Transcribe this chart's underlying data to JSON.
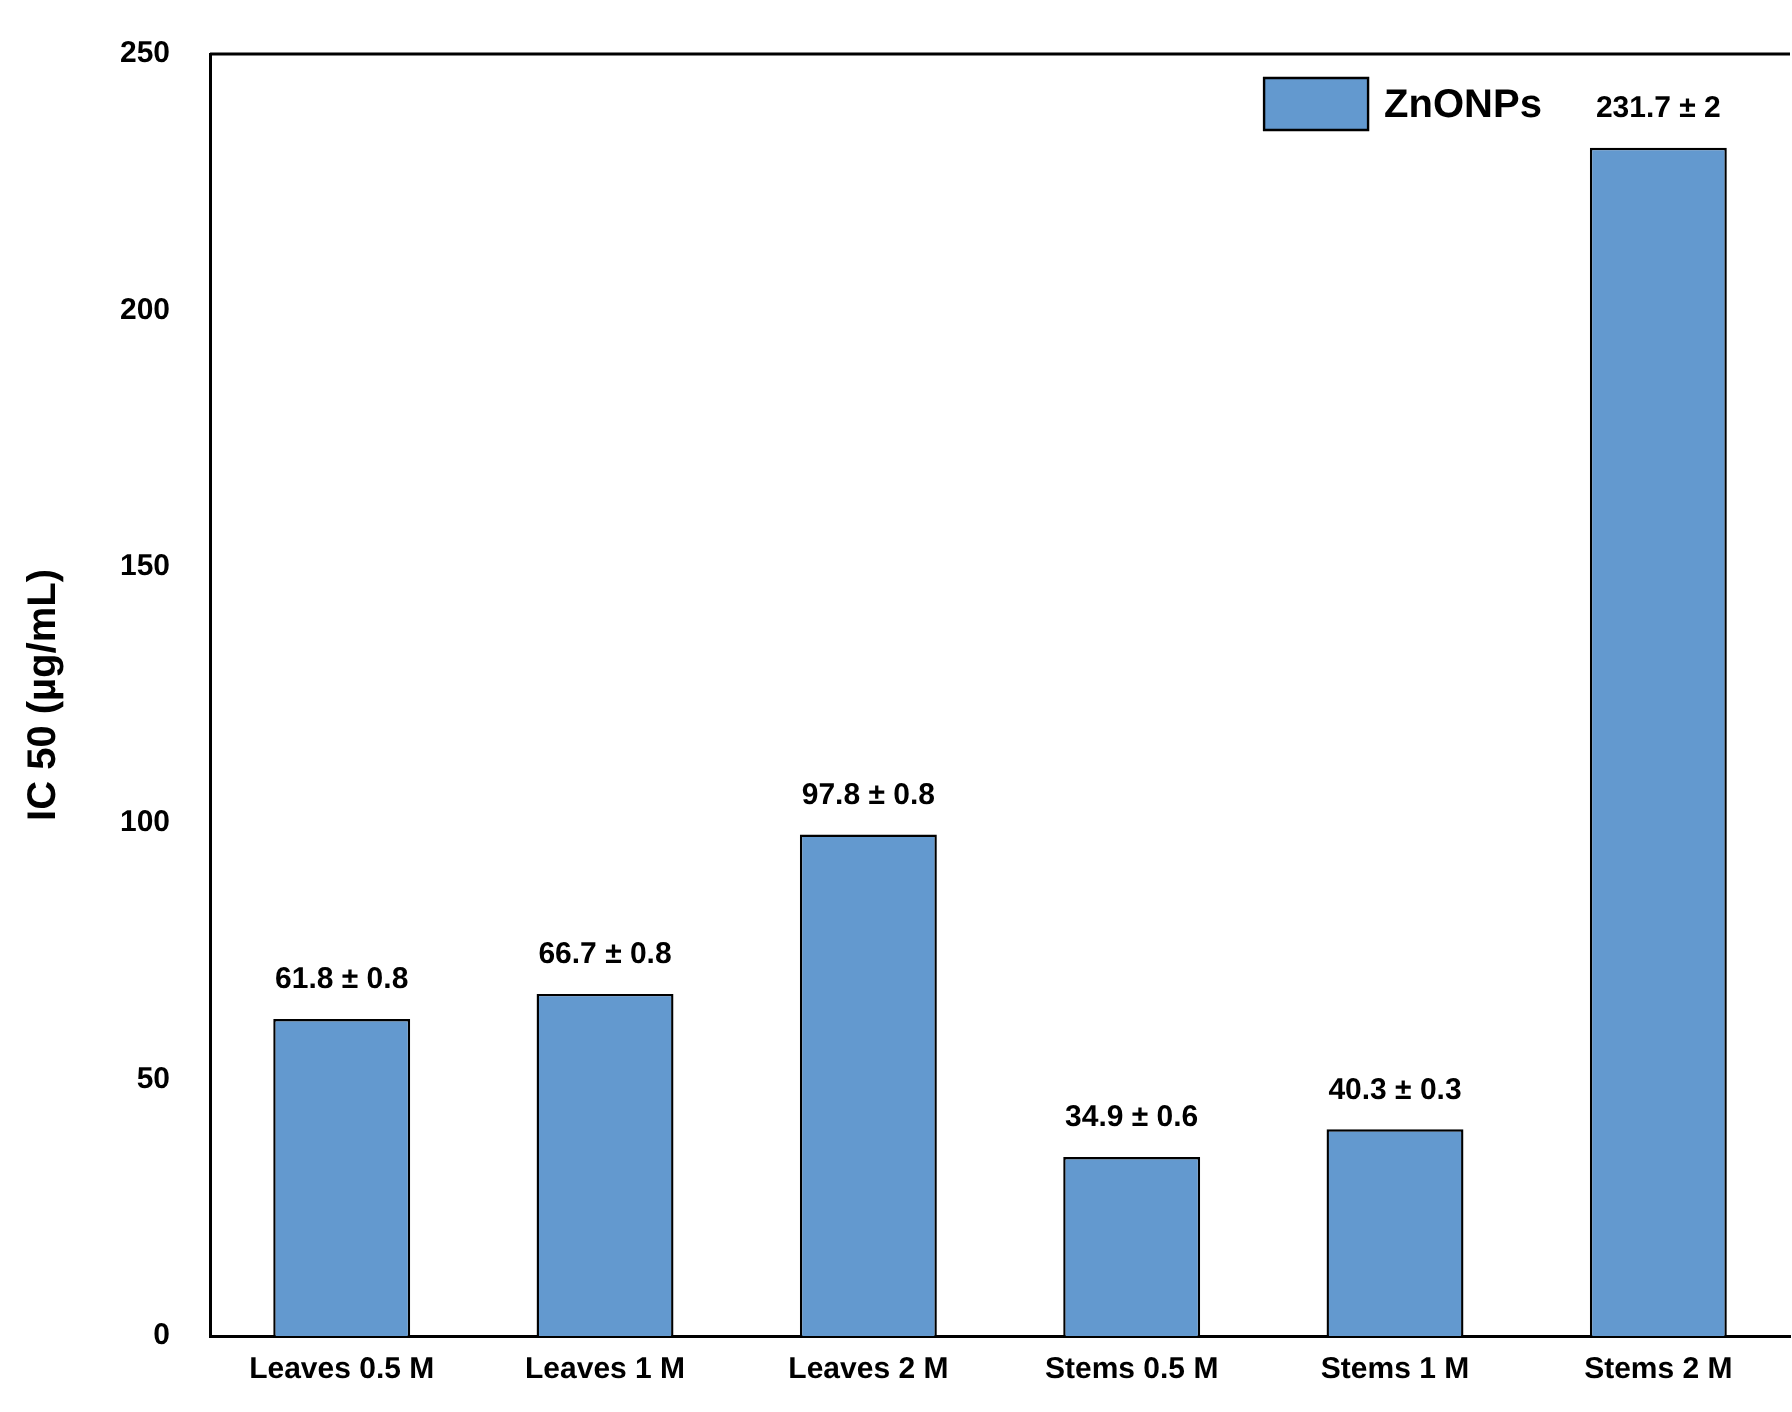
{
  "chart_data": {
    "type": "bar",
    "ylabel": "IC 50 (µg/mL)",
    "categories": [
      "Leaves 0.5 M",
      "Leaves 1 M",
      "Leaves 2 M",
      "Stems 0.5 M",
      "Stems 1 M",
      "Stems 2 M"
    ],
    "series": [
      {
        "name": "ZnONPs",
        "color": "#6399cf",
        "values": [
          61.8,
          66.7,
          97.8,
          34.9,
          40.3,
          231.7
        ],
        "value_labels": [
          "61.8 ± 0.8",
          "66.7 ± 0.8",
          "97.8 ± 0.8",
          "34.9 ± 0.6",
          "40.3 ± 0.3",
          "231.7 ± 2"
        ]
      }
    ],
    "ylim": [
      0,
      250
    ],
    "yticks": [
      0,
      50,
      100,
      150,
      200,
      250
    ],
    "grid": false,
    "legend": "top right"
  }
}
